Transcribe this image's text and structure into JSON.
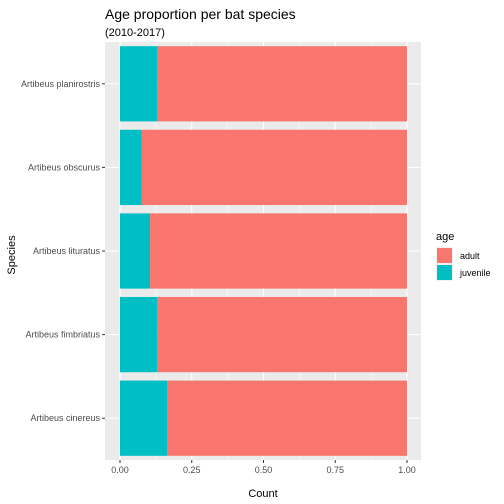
{
  "chart_data": {
    "type": "bar",
    "orientation": "horizontal",
    "stacked": true,
    "title": "Age proportion per bat species",
    "subtitle": "(2010-2017)",
    "xlabel": "Count",
    "ylabel": "Species",
    "xlim": [
      0,
      1
    ],
    "xticks": [
      "0.00",
      "0.25",
      "0.50",
      "0.75",
      "1.00"
    ],
    "xtick_values": [
      0,
      0.25,
      0.5,
      0.75,
      1
    ],
    "categories": [
      "Artibeus planirostris",
      "Artibeus obscurus",
      "Artibeus lituratus",
      "Artibeus fimbriatus",
      "Artibeus cinereus"
    ],
    "series": [
      {
        "name": "juvenile",
        "values": [
          0.13,
          0.075,
          0.105,
          0.13,
          0.165
        ]
      },
      {
        "name": "adult",
        "values": [
          0.87,
          0.925,
          0.895,
          0.87,
          0.835
        ]
      }
    ],
    "legend": {
      "title": "age",
      "position": "right",
      "items": [
        {
          "label": "adult",
          "color": "#F8766D"
        },
        {
          "label": "juvenile",
          "color": "#00BFC4"
        }
      ]
    },
    "colors": {
      "adult": "#F8766D",
      "juvenile": "#00BFC4",
      "panel": "#EBEBEB",
      "grid": "#FFFFFF"
    },
    "grid": true
  }
}
